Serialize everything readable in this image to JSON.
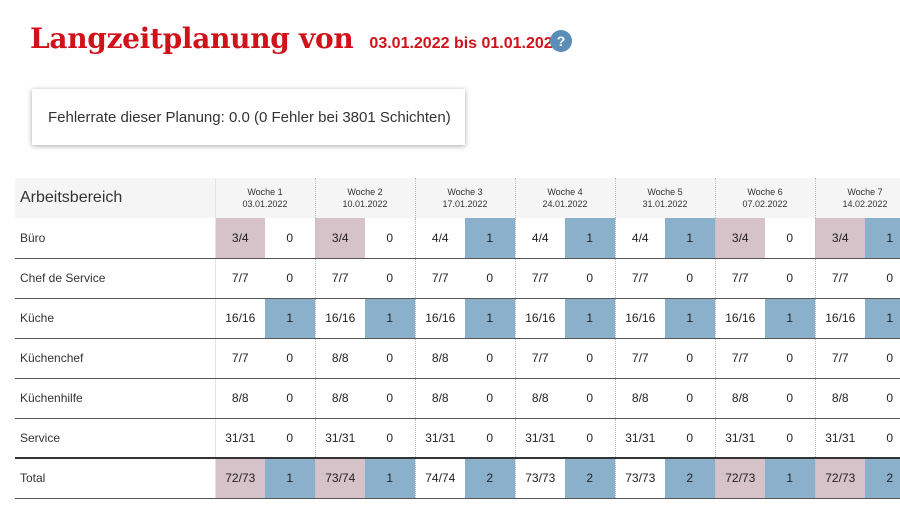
{
  "header": {
    "title": "Langzeitplanung von",
    "date_range": "03.01.2022 bis 01.01.2023",
    "help_label": "?"
  },
  "error_card": {
    "text": "Fehlerrate dieser Planung: 0.0 (0 Fehler bei 3801 Schichten)"
  },
  "table": {
    "area_header": "Arbeitsbereich",
    "weeks": [
      {
        "title": "Woche 1",
        "date": "03.01.2022"
      },
      {
        "title": "Woche 2",
        "date": "10.01.2022"
      },
      {
        "title": "Woche 3",
        "date": "17.01.2022"
      },
      {
        "title": "Woche 4",
        "date": "24.01.2022"
      },
      {
        "title": "Woche 5",
        "date": "31.01.2022"
      },
      {
        "title": "Woche 6",
        "date": "07.02.2022"
      },
      {
        "title": "Woche 7",
        "date": "14.02.2022"
      }
    ],
    "rows": [
      {
        "name": "Büro",
        "cells": [
          {
            "ratio": "3/4",
            "count": "0",
            "hl_ratio": true,
            "hl_count": false
          },
          {
            "ratio": "3/4",
            "count": "0",
            "hl_ratio": true,
            "hl_count": false
          },
          {
            "ratio": "4/4",
            "count": "1",
            "hl_ratio": false,
            "hl_count": true
          },
          {
            "ratio": "4/4",
            "count": "1",
            "hl_ratio": false,
            "hl_count": true
          },
          {
            "ratio": "4/4",
            "count": "1",
            "hl_ratio": false,
            "hl_count": true
          },
          {
            "ratio": "3/4",
            "count": "0",
            "hl_ratio": true,
            "hl_count": false
          },
          {
            "ratio": "3/4",
            "count": "1",
            "hl_ratio": true,
            "hl_count": true
          }
        ]
      },
      {
        "name": "Chef de Service",
        "cells": [
          {
            "ratio": "7/7",
            "count": "0",
            "hl_ratio": false,
            "hl_count": false
          },
          {
            "ratio": "7/7",
            "count": "0",
            "hl_ratio": false,
            "hl_count": false
          },
          {
            "ratio": "7/7",
            "count": "0",
            "hl_ratio": false,
            "hl_count": false
          },
          {
            "ratio": "7/7",
            "count": "0",
            "hl_ratio": false,
            "hl_count": false
          },
          {
            "ratio": "7/7",
            "count": "0",
            "hl_ratio": false,
            "hl_count": false
          },
          {
            "ratio": "7/7",
            "count": "0",
            "hl_ratio": false,
            "hl_count": false
          },
          {
            "ratio": "7/7",
            "count": "0",
            "hl_ratio": false,
            "hl_count": false
          }
        ]
      },
      {
        "name": "Küche",
        "cells": [
          {
            "ratio": "16/16",
            "count": "1",
            "hl_ratio": false,
            "hl_count": true
          },
          {
            "ratio": "16/16",
            "count": "1",
            "hl_ratio": false,
            "hl_count": true
          },
          {
            "ratio": "16/16",
            "count": "1",
            "hl_ratio": false,
            "hl_count": true
          },
          {
            "ratio": "16/16",
            "count": "1",
            "hl_ratio": false,
            "hl_count": true
          },
          {
            "ratio": "16/16",
            "count": "1",
            "hl_ratio": false,
            "hl_count": true
          },
          {
            "ratio": "16/16",
            "count": "1",
            "hl_ratio": false,
            "hl_count": true
          },
          {
            "ratio": "16/16",
            "count": "1",
            "hl_ratio": false,
            "hl_count": true
          }
        ]
      },
      {
        "name": "Küchenchef",
        "cells": [
          {
            "ratio": "7/7",
            "count": "0",
            "hl_ratio": false,
            "hl_count": false
          },
          {
            "ratio": "8/8",
            "count": "0",
            "hl_ratio": false,
            "hl_count": false
          },
          {
            "ratio": "8/8",
            "count": "0",
            "hl_ratio": false,
            "hl_count": false
          },
          {
            "ratio": "7/7",
            "count": "0",
            "hl_ratio": false,
            "hl_count": false
          },
          {
            "ratio": "7/7",
            "count": "0",
            "hl_ratio": false,
            "hl_count": false
          },
          {
            "ratio": "7/7",
            "count": "0",
            "hl_ratio": false,
            "hl_count": false
          },
          {
            "ratio": "7/7",
            "count": "0",
            "hl_ratio": false,
            "hl_count": false
          }
        ]
      },
      {
        "name": "Küchenhilfe",
        "cells": [
          {
            "ratio": "8/8",
            "count": "0",
            "hl_ratio": false,
            "hl_count": false
          },
          {
            "ratio": "8/8",
            "count": "0",
            "hl_ratio": false,
            "hl_count": false
          },
          {
            "ratio": "8/8",
            "count": "0",
            "hl_ratio": false,
            "hl_count": false
          },
          {
            "ratio": "8/8",
            "count": "0",
            "hl_ratio": false,
            "hl_count": false
          },
          {
            "ratio": "8/8",
            "count": "0",
            "hl_ratio": false,
            "hl_count": false
          },
          {
            "ratio": "8/8",
            "count": "0",
            "hl_ratio": false,
            "hl_count": false
          },
          {
            "ratio": "8/8",
            "count": "0",
            "hl_ratio": false,
            "hl_count": false
          }
        ]
      },
      {
        "name": "Service",
        "cells": [
          {
            "ratio": "31/31",
            "count": "0",
            "hl_ratio": false,
            "hl_count": false
          },
          {
            "ratio": "31/31",
            "count": "0",
            "hl_ratio": false,
            "hl_count": false
          },
          {
            "ratio": "31/31",
            "count": "0",
            "hl_ratio": false,
            "hl_count": false
          },
          {
            "ratio": "31/31",
            "count": "0",
            "hl_ratio": false,
            "hl_count": false
          },
          {
            "ratio": "31/31",
            "count": "0",
            "hl_ratio": false,
            "hl_count": false
          },
          {
            "ratio": "31/31",
            "count": "0",
            "hl_ratio": false,
            "hl_count": false
          },
          {
            "ratio": "31/31",
            "count": "0",
            "hl_ratio": false,
            "hl_count": false
          }
        ]
      },
      {
        "name": "Total",
        "total": true,
        "cells": [
          {
            "ratio": "72/73",
            "count": "1",
            "hl_ratio": true,
            "hl_count": true
          },
          {
            "ratio": "73/74",
            "count": "1",
            "hl_ratio": true,
            "hl_count": true
          },
          {
            "ratio": "74/74",
            "count": "2",
            "hl_ratio": false,
            "hl_count": true
          },
          {
            "ratio": "73/73",
            "count": "2",
            "hl_ratio": false,
            "hl_count": true
          },
          {
            "ratio": "73/73",
            "count": "2",
            "hl_ratio": false,
            "hl_count": true
          },
          {
            "ratio": "72/73",
            "count": "1",
            "hl_ratio": true,
            "hl_count": true
          },
          {
            "ratio": "72/73",
            "count": "2",
            "hl_ratio": true,
            "hl_count": true
          }
        ]
      }
    ]
  },
  "colors": {
    "title_red": "#d0121b",
    "help_blue": "#5a8db8",
    "ratio_highlight": "#d6c3c9",
    "count_highlight": "#8ab0cc"
  }
}
